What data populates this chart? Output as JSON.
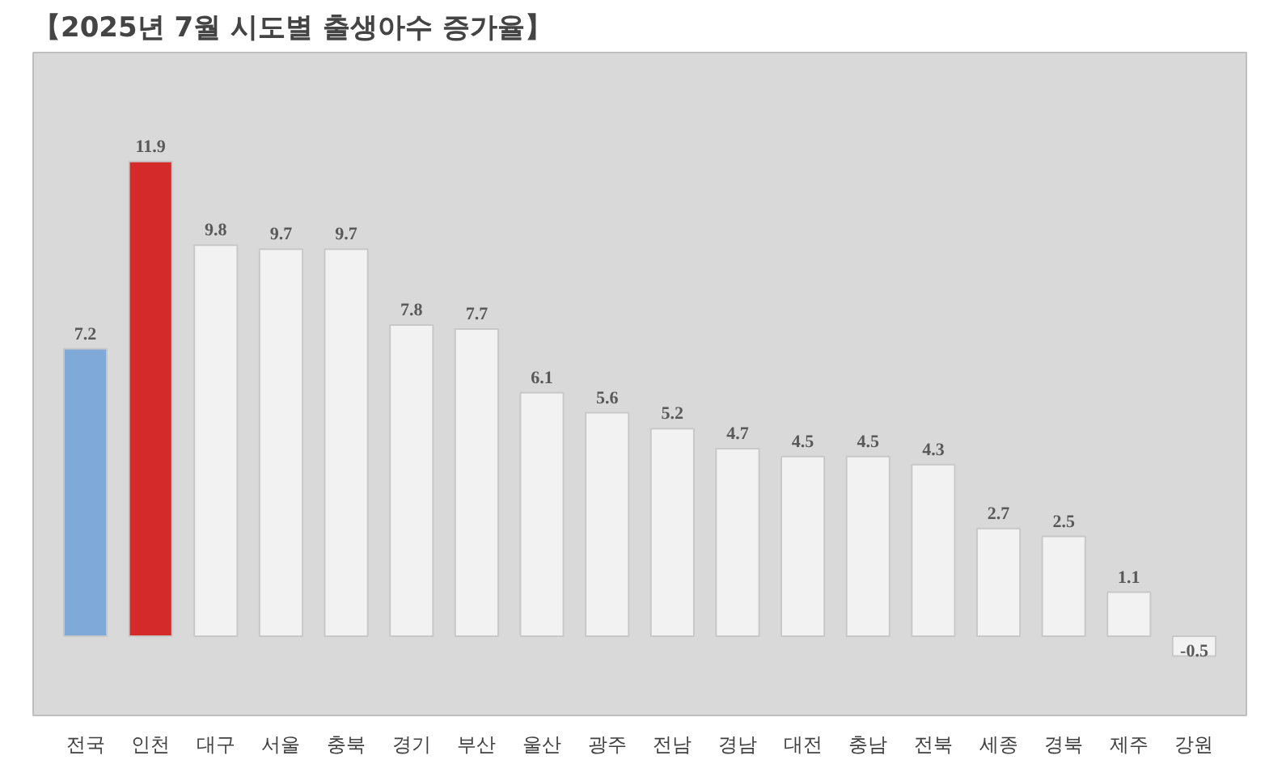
{
  "chart_data": {
    "type": "bar",
    "title": "【2025년 7월 시도별 출생아수 증가율】",
    "categories": [
      "전국",
      "인천",
      "대구",
      "서울",
      "충북",
      "경기",
      "부산",
      "울산",
      "광주",
      "전남",
      "경남",
      "대전",
      "충남",
      "전북",
      "세종",
      "경북",
      "제주",
      "강원"
    ],
    "values": [
      7.2,
      11.9,
      9.8,
      9.7,
      9.7,
      7.8,
      7.7,
      6.1,
      5.6,
      5.2,
      4.7,
      4.5,
      4.5,
      4.3,
      2.7,
      2.5,
      1.1,
      -0.5
    ],
    "colors": [
      "#7fa9d9",
      "#d42a2a",
      "#f2f2f2",
      "#f2f2f2",
      "#f2f2f2",
      "#f2f2f2",
      "#f2f2f2",
      "#f2f2f2",
      "#f2f2f2",
      "#f2f2f2",
      "#f2f2f2",
      "#f2f2f2",
      "#f2f2f2",
      "#f2f2f2",
      "#f2f2f2",
      "#f2f2f2",
      "#f2f2f2",
      "#f2f2f2"
    ],
    "data_labels": true
  }
}
